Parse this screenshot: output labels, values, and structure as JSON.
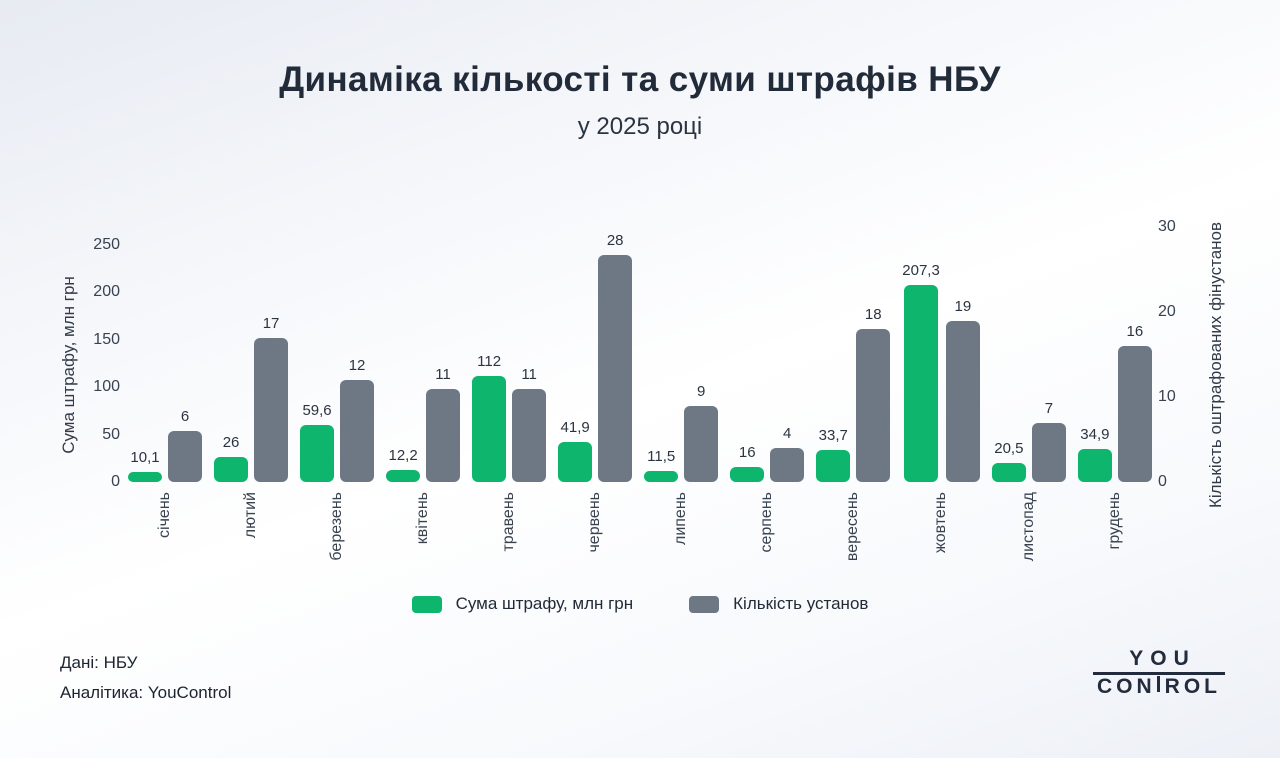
{
  "title": "Динаміка кількості та суми штрафів НБУ",
  "subtitle": "у 2025 році",
  "chart_data": {
    "type": "bar",
    "categories": [
      "січень",
      "лютий",
      "березень",
      "квітень",
      "травень",
      "червень",
      "липень",
      "серпень",
      "вересень",
      "жовтень",
      "листопад",
      "грудень"
    ],
    "series": [
      {
        "name": "Сума штрафу, млн грн",
        "axis": "left",
        "color": "#0eb56c",
        "values": [
          10.1,
          26,
          59.6,
          12.2,
          112,
          41.9,
          11.5,
          16,
          33.7,
          207.3,
          20.5,
          34.9
        ],
        "labels": [
          "10,1",
          "26",
          "59,6",
          "12,2",
          "112",
          "41,9",
          "11,5",
          "16",
          "33,7",
          "207,3",
          "20,5",
          "34,9"
        ]
      },
      {
        "name": "Кількість установ",
        "axis": "right",
        "color": "#6e7885",
        "values": [
          6,
          17,
          12,
          11,
          11,
          28,
          9,
          4,
          18,
          19,
          7,
          16
        ],
        "labels": [
          "6",
          "17",
          "12",
          "11",
          "11",
          "28",
          "9",
          "4",
          "18",
          "19",
          "7",
          "16"
        ]
      }
    ],
    "left_axis": {
      "label": "Сума штрафу, млн грн",
      "ticks": [
        0,
        50,
        100,
        150,
        200,
        250
      ],
      "range": [
        0,
        250
      ]
    },
    "right_axis": {
      "label": "Кількість оштрафованих фінустанов",
      "ticks": [
        0,
        10,
        20,
        30
      ],
      "range": [
        0,
        30
      ]
    },
    "legend": [
      {
        "label": "Сума штрафу, млн грн",
        "color": "#0eb56c"
      },
      {
        "label": "Кількість установ",
        "color": "#6e7885"
      }
    ],
    "grid": false,
    "legend_position": "bottom"
  },
  "footer": {
    "source": "Дані: НБУ",
    "analytics": "Аналітика: YouControl"
  },
  "logo": {
    "line1": "YOU",
    "line2_part1": "CON",
    "line2_part2": "ROL"
  }
}
